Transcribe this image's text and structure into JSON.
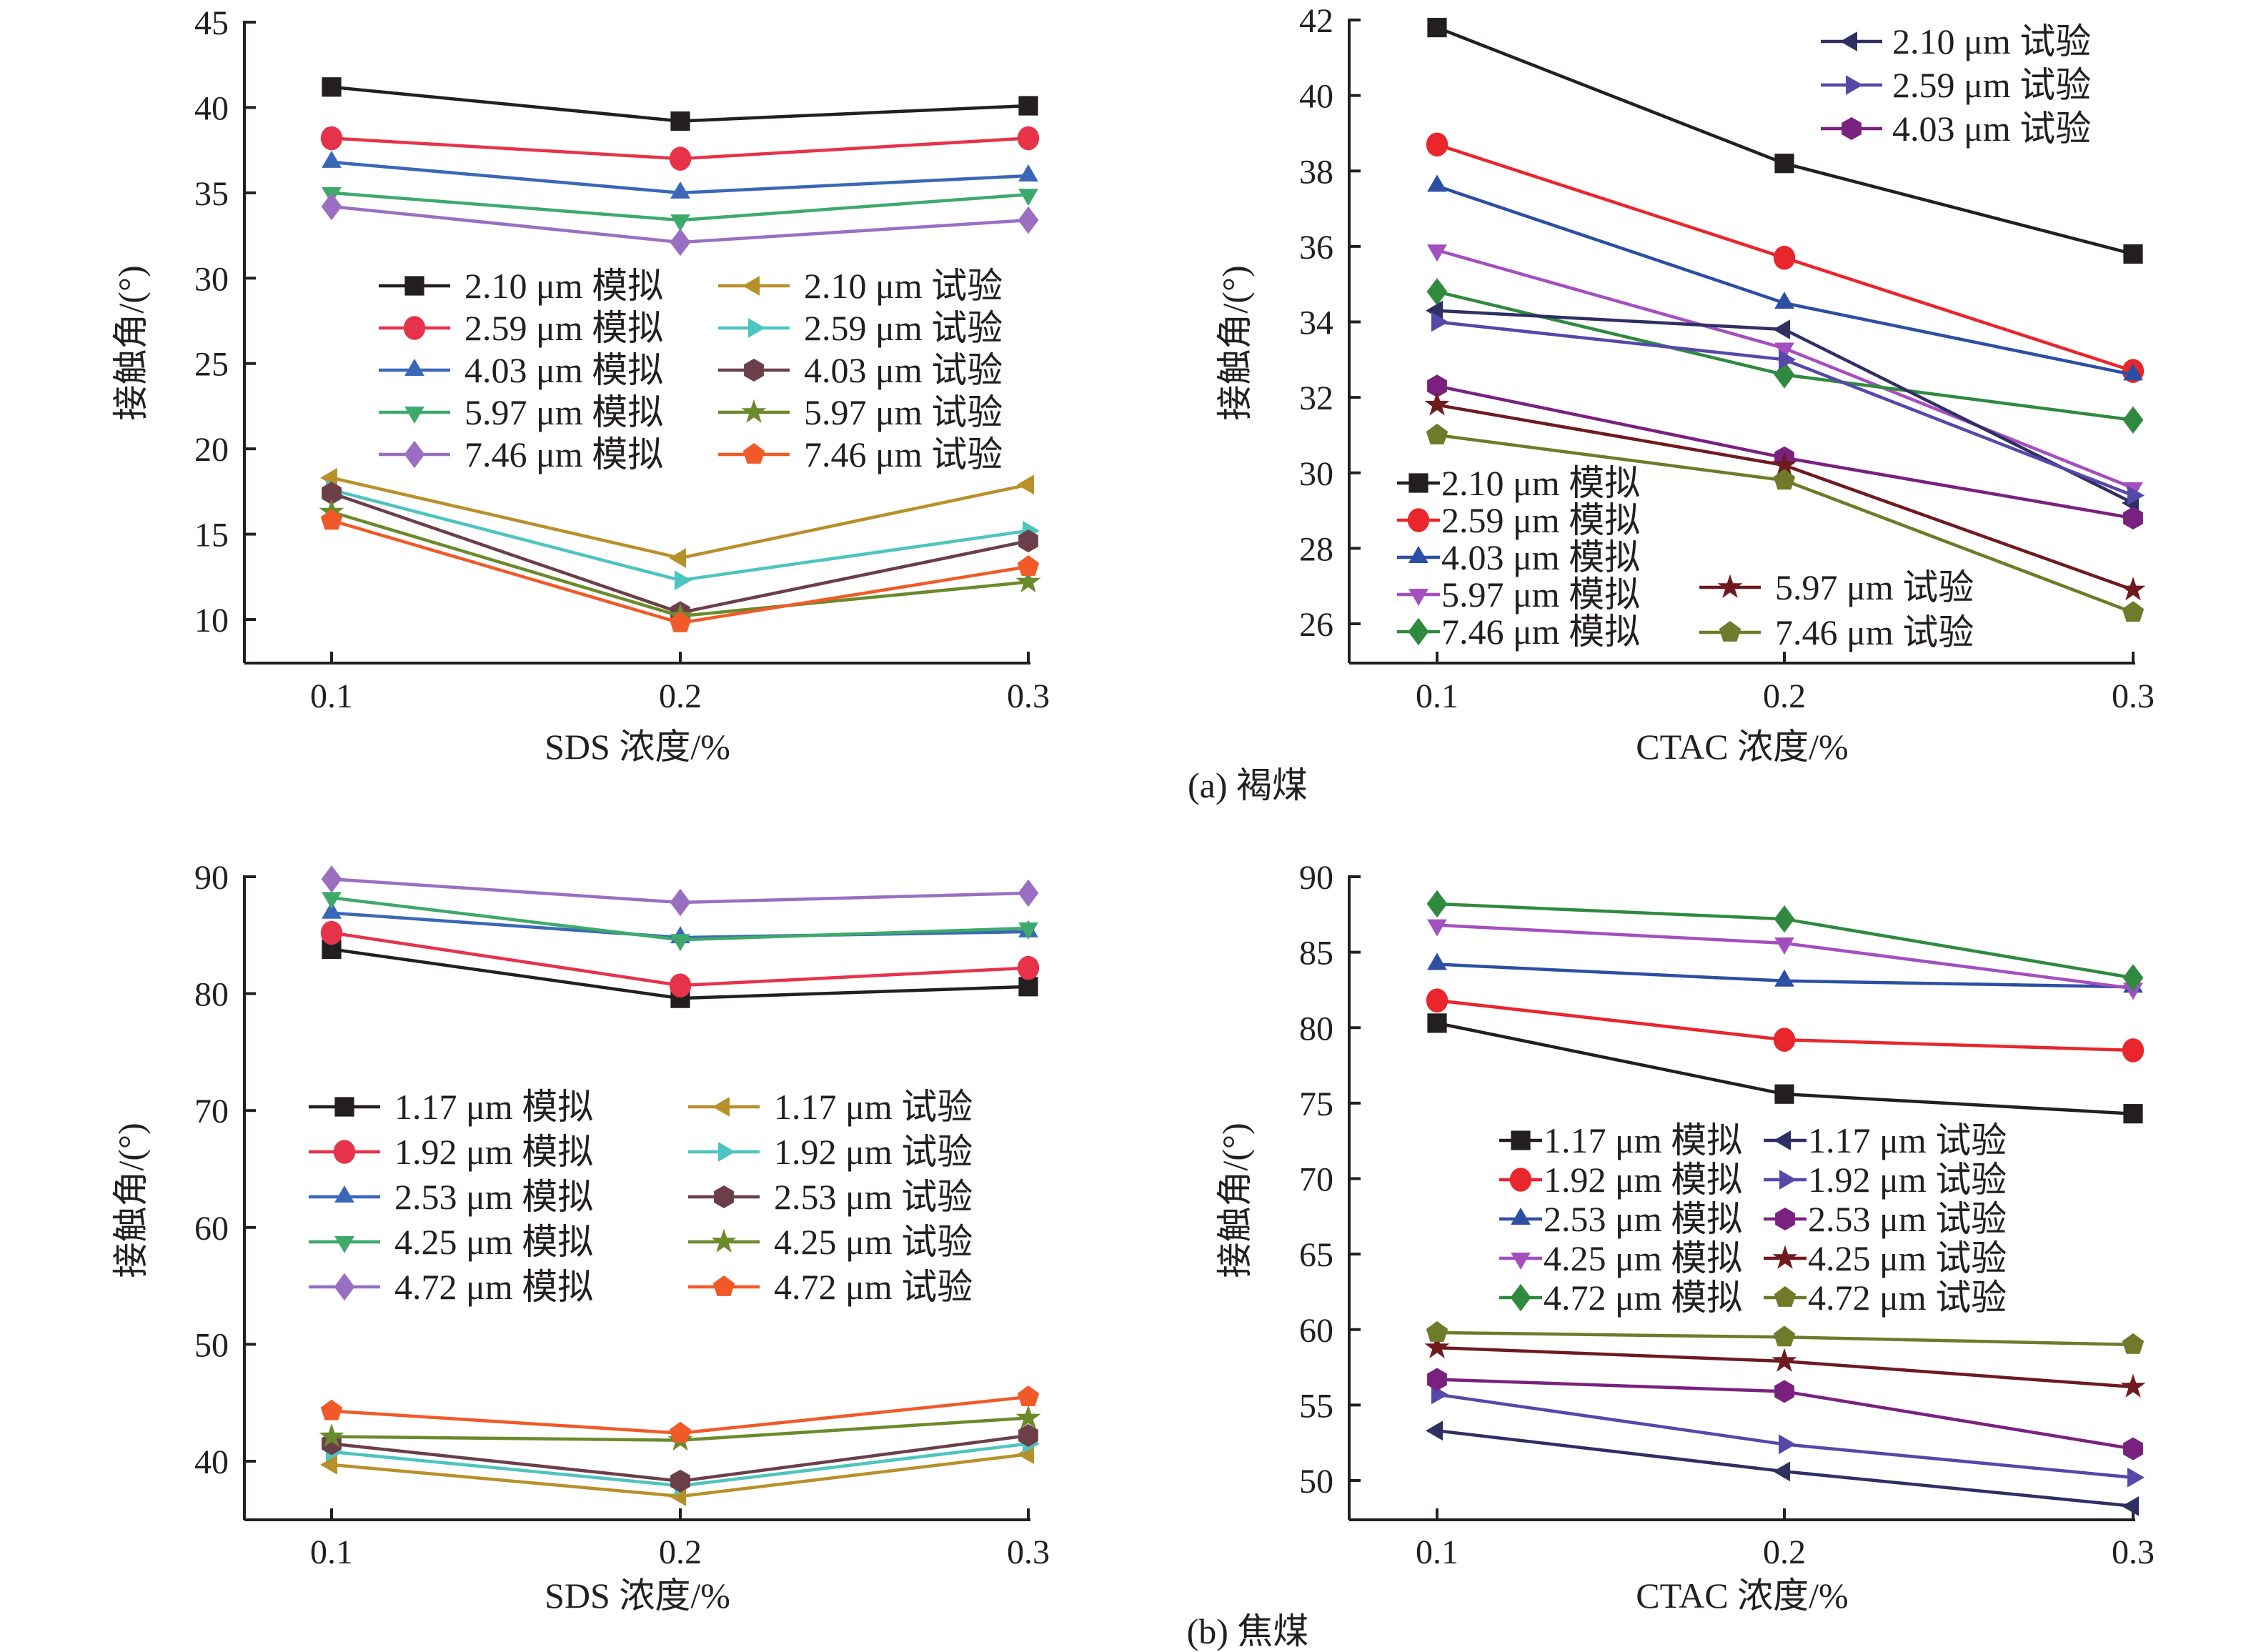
{
  "figure": {
    "captions": {
      "a": "(a) 褐煤",
      "b": "(b) 焦煤"
    }
  },
  "chart_data": [
    {
      "id": "a-sds",
      "panel": "a",
      "type": "line",
      "title": "",
      "xlabel": "SDS 浓度/%",
      "ylabel": "接触角/(°)",
      "x": [
        0.1,
        0.2,
        0.3
      ],
      "x_tick_labels": [
        "0.1",
        "0.2",
        "0.3"
      ],
      "ylim": [
        10,
        45
      ],
      "y_ticks": [
        10,
        15,
        20,
        25,
        30,
        35,
        40,
        45
      ],
      "grid": false,
      "legend_placement": "center (two columns)",
      "series": [
        {
          "name": "2.10 μm 模拟",
          "marker": "square",
          "color": "#231f20",
          "values": [
            41.2,
            39.2,
            40.1
          ]
        },
        {
          "name": "2.59 μm 模拟",
          "marker": "circle",
          "color": "#e6334a",
          "values": [
            38.2,
            37.0,
            38.2
          ]
        },
        {
          "name": "4.03 μm 模拟",
          "marker": "triangle-up",
          "color": "#3a67b7",
          "values": [
            36.8,
            35.0,
            36.0
          ]
        },
        {
          "name": "5.97 μm 模拟",
          "marker": "triangle-down",
          "color": "#3daa6b",
          "values": [
            35.0,
            33.4,
            34.9
          ]
        },
        {
          "name": "7.46 μm 模拟",
          "marker": "diamond",
          "color": "#9a6fc2",
          "values": [
            34.2,
            32.1,
            33.4
          ]
        },
        {
          "name": "2.10 μm 试验",
          "marker": "triangle-left",
          "color": "#b8902a",
          "values": [
            18.3,
            13.6,
            17.9
          ]
        },
        {
          "name": "2.59 μm 试验",
          "marker": "triangle-right",
          "color": "#4dc4c0",
          "values": [
            17.6,
            12.3,
            15.2
          ]
        },
        {
          "name": "4.03 μm 试验",
          "marker": "hexagon",
          "color": "#6b3f4a",
          "values": [
            17.4,
            10.4,
            14.6
          ]
        },
        {
          "name": "5.97 μm 试验",
          "marker": "star",
          "color": "#6b8a2b",
          "values": [
            16.3,
            10.2,
            12.2
          ]
        },
        {
          "name": "7.46 μm 试验",
          "marker": "pentagon",
          "color": "#f05a28",
          "values": [
            15.8,
            9.8,
            13.1
          ]
        }
      ]
    },
    {
      "id": "a-ctac",
      "panel": "a",
      "type": "line",
      "title": "",
      "xlabel": "CTAC 浓度/%",
      "ylabel": "接触角/(°)",
      "x": [
        0.1,
        0.2,
        0.3
      ],
      "x_tick_labels": [
        "0.1",
        "0.2",
        "0.3"
      ],
      "ylim": [
        26,
        42
      ],
      "y_ticks": [
        26,
        28,
        30,
        32,
        34,
        36,
        38,
        40,
        42
      ],
      "grid": false,
      "legend_placement": "split: top-right and bottom-left",
      "series": [
        {
          "name": "2.10 μm 模拟",
          "marker": "square",
          "color": "#231f20",
          "values": [
            41.8,
            38.2,
            35.8
          ]
        },
        {
          "name": "2.59 μm 模拟",
          "marker": "circle",
          "color": "#e8262c",
          "values": [
            38.7,
            35.7,
            32.7
          ]
        },
        {
          "name": "4.03 μm 模拟",
          "marker": "triangle-up",
          "color": "#2d4fa3",
          "values": [
            37.6,
            34.5,
            32.6
          ]
        },
        {
          "name": "5.97 μm 模拟",
          "marker": "triangle-down",
          "color": "#a44fc0",
          "values": [
            35.9,
            33.3,
            29.6
          ]
        },
        {
          "name": "7.46 μm 模拟",
          "marker": "diamond",
          "color": "#2f8a3f",
          "values": [
            34.8,
            32.6,
            31.4
          ]
        },
        {
          "name": "2.10 μm 试验",
          "marker": "triangle-left",
          "color": "#2e2f63",
          "values": [
            34.3,
            33.8,
            29.2
          ]
        },
        {
          "name": "2.59 μm 试验",
          "marker": "triangle-right",
          "color": "#5548a8",
          "values": [
            34.0,
            33.0,
            29.4
          ]
        },
        {
          "name": "4.03 μm 试验",
          "marker": "hexagon",
          "color": "#7a2180",
          "values": [
            32.3,
            30.4,
            28.8
          ]
        },
        {
          "name": "5.97 μm 试验",
          "marker": "star",
          "color": "#6e1a1f",
          "values": [
            31.8,
            30.2,
            26.9
          ]
        },
        {
          "name": "7.46 μm 试验",
          "marker": "pentagon",
          "color": "#6f7a2a",
          "values": [
            31.0,
            29.8,
            26.3
          ]
        }
      ]
    },
    {
      "id": "b-sds",
      "panel": "b",
      "type": "line",
      "title": "",
      "xlabel": "SDS 浓度/%",
      "ylabel": "接触角/(°)",
      "x": [
        0.1,
        0.2,
        0.3
      ],
      "x_tick_labels": [
        "0.1",
        "0.2",
        "0.3"
      ],
      "ylim": [
        40,
        90
      ],
      "y_ticks": [
        40,
        50,
        60,
        70,
        80,
        90
      ],
      "grid": false,
      "legend_placement": "center (two columns)",
      "series": [
        {
          "name": "1.17 μm 模拟",
          "marker": "square",
          "color": "#231f20",
          "values": [
            83.8,
            79.6,
            80.6
          ]
        },
        {
          "name": "1.92 μm 模拟",
          "marker": "circle",
          "color": "#e6334a",
          "values": [
            85.2,
            80.7,
            82.2
          ]
        },
        {
          "name": "2.53 μm 模拟",
          "marker": "triangle-up",
          "color": "#3a67b7",
          "values": [
            86.9,
            84.8,
            85.3
          ]
        },
        {
          "name": "4.25 μm 模拟",
          "marker": "triangle-down",
          "color": "#3daa6b",
          "values": [
            88.2,
            84.6,
            85.6
          ]
        },
        {
          "name": "4.72 μm 模拟",
          "marker": "diamond",
          "color": "#9a6fc2",
          "values": [
            89.8,
            87.8,
            88.6
          ]
        },
        {
          "name": "1.17 μm 试验",
          "marker": "triangle-left",
          "color": "#b8902a",
          "values": [
            39.7,
            37.0,
            40.6
          ]
        },
        {
          "name": "1.92 μm 试验",
          "marker": "triangle-right",
          "color": "#4dc4c0",
          "values": [
            40.8,
            37.9,
            41.5
          ]
        },
        {
          "name": "2.53 μm 试验",
          "marker": "hexagon",
          "color": "#6b3f4a",
          "values": [
            41.5,
            38.3,
            42.2
          ]
        },
        {
          "name": "4.25 μm 试验",
          "marker": "star",
          "color": "#6b8a2b",
          "values": [
            42.1,
            41.8,
            43.7
          ]
        },
        {
          "name": "4.72 μm 试验",
          "marker": "pentagon",
          "color": "#f05a28",
          "values": [
            44.3,
            42.4,
            45.5
          ]
        }
      ]
    },
    {
      "id": "b-ctac",
      "panel": "b",
      "type": "line",
      "title": "",
      "xlabel": "CTAC 浓度/%",
      "ylabel": "接触角/(°)",
      "x": [
        0.1,
        0.2,
        0.3
      ],
      "x_tick_labels": [
        "0.1",
        "0.2",
        "0.3"
      ],
      "ylim": [
        50,
        90
      ],
      "y_ticks": [
        50,
        55,
        60,
        65,
        70,
        75,
        80,
        85,
        90
      ],
      "grid": false,
      "legend_placement": "center (two columns)",
      "series": [
        {
          "name": "1.17 μm 模拟",
          "marker": "square",
          "color": "#231f20",
          "values": [
            80.3,
            75.6,
            74.3
          ]
        },
        {
          "name": "1.92 μm 模拟",
          "marker": "circle",
          "color": "#e8262c",
          "values": [
            81.8,
            79.2,
            78.5
          ]
        },
        {
          "name": "2.53 μm 模拟",
          "marker": "triangle-up",
          "color": "#2d4fa3",
          "values": [
            84.2,
            83.1,
            82.7
          ]
        },
        {
          "name": "4.25 μm 模拟",
          "marker": "triangle-down",
          "color": "#a44fc0",
          "values": [
            86.8,
            85.6,
            82.6
          ]
        },
        {
          "name": "4.72 μm 模拟",
          "marker": "diamond",
          "color": "#2f8a3f",
          "values": [
            88.2,
            87.2,
            83.3
          ]
        },
        {
          "name": "1.17 μm 试验",
          "marker": "triangle-left",
          "color": "#2e2f63",
          "values": [
            53.3,
            50.6,
            48.3
          ]
        },
        {
          "name": "1.92 μm 试验",
          "marker": "triangle-right",
          "color": "#5548a8",
          "values": [
            55.7,
            52.4,
            50.2
          ]
        },
        {
          "name": "2.53 μm 试验",
          "marker": "hexagon",
          "color": "#7a2180",
          "values": [
            56.7,
            55.9,
            52.1
          ]
        },
        {
          "name": "4.25 μm 试验",
          "marker": "star",
          "color": "#6e1a1f",
          "values": [
            58.8,
            57.9,
            56.2
          ]
        },
        {
          "name": "4.72 μm 试验",
          "marker": "pentagon",
          "color": "#6f7a2a",
          "values": [
            59.8,
            59.5,
            59.0
          ]
        }
      ]
    }
  ]
}
